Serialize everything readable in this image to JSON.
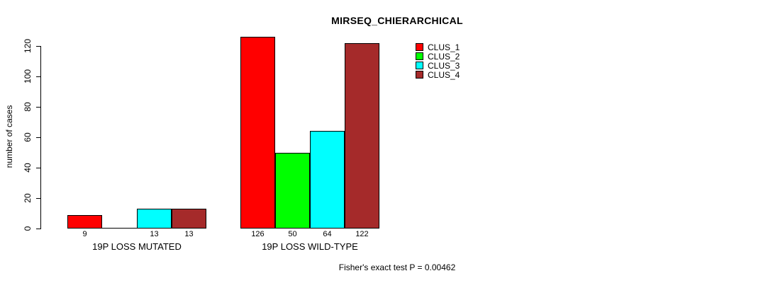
{
  "chart": {
    "title": "MIRSEQ_CHIERARCHICAL",
    "ylabel": "number of cases",
    "footnote": "Fisher's exact test P = 0.00462"
  },
  "chart_data": {
    "type": "bar",
    "title": "MIRSEQ_CHIERARCHICAL",
    "xlabel": "",
    "ylabel": "number of cases",
    "ylim": [
      0,
      120
    ],
    "yticks": [
      0,
      20,
      40,
      60,
      80,
      100,
      120
    ],
    "grid": false,
    "legend_position": "top-right-inside",
    "categories": [
      "19P LOSS MUTATED",
      "19P LOSS WILD-TYPE"
    ],
    "series": [
      {
        "name": "CLUS_1",
        "color": "#FF0000",
        "values": [
          9,
          126
        ]
      },
      {
        "name": "CLUS_2",
        "color": "#00FF00",
        "values": [
          0,
          50
        ]
      },
      {
        "name": "CLUS_3",
        "color": "#00FFFF",
        "values": [
          13,
          64
        ]
      },
      {
        "name": "CLUS_4",
        "color": "#A52A2A",
        "values": [
          13,
          122
        ]
      }
    ],
    "bar_labels": [
      [
        "9",
        "",
        "13",
        "13"
      ],
      [
        "126",
        "50",
        "64",
        "122"
      ]
    ],
    "annotation": "Fisher's exact test P = 0.00462"
  }
}
